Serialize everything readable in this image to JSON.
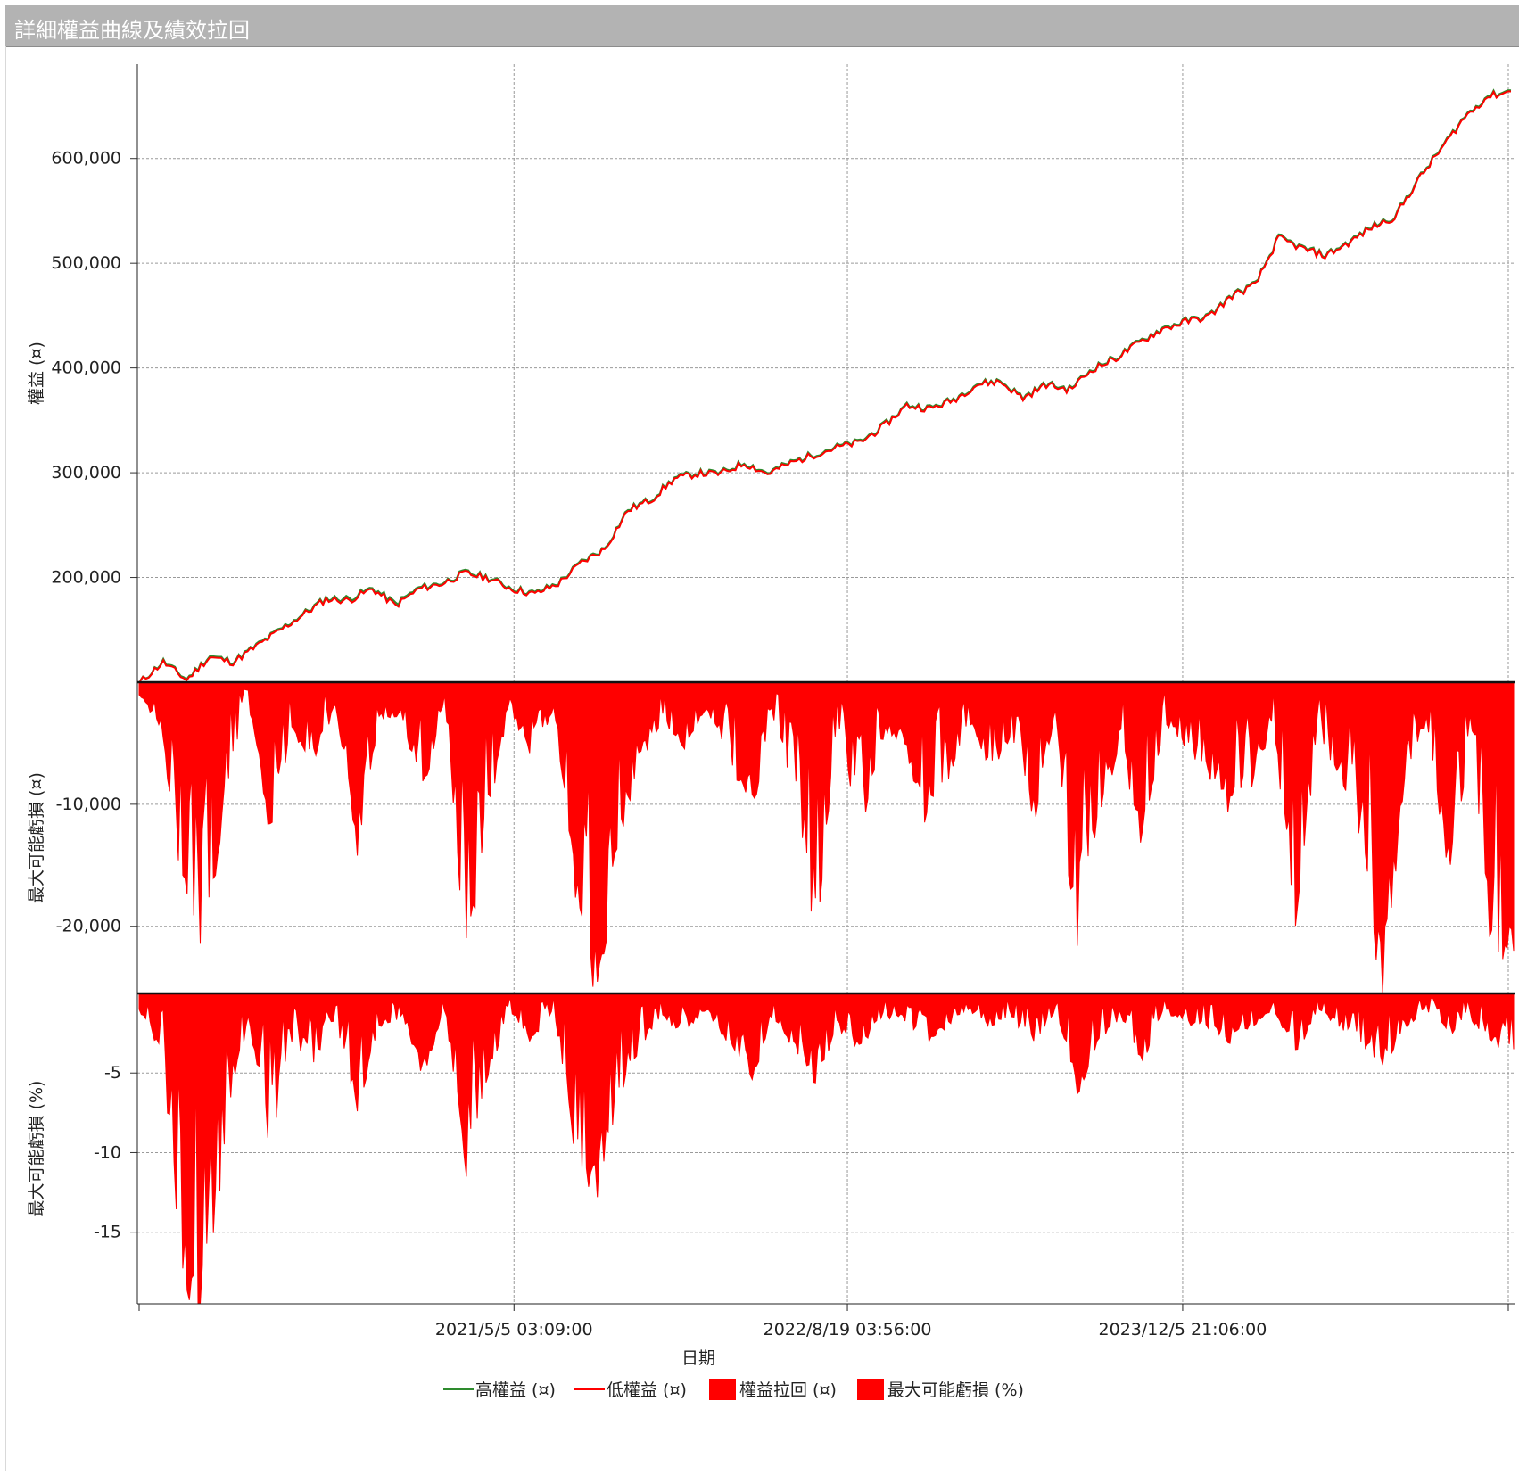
{
  "window": {
    "title": "詳細權益曲線及績效拉回"
  },
  "chart_data": {
    "type": "line",
    "x_label": "日期",
    "x_ticks": [
      "2021/5/5 03:09:00",
      "2022/8/19 03:56:00",
      "2023/12/5 21:06:00"
    ],
    "x_range": [
      "2019-11-20",
      "2025-03-20"
    ],
    "panels": [
      {
        "name": "equity",
        "ylabel": "權益 (¤)",
        "ylim": [
          100000,
          690000
        ],
        "ticks": [
          200000,
          300000,
          400000,
          500000,
          600000
        ],
        "tick_labels": [
          "200,000",
          "300,000",
          "400,000",
          "500,000",
          "600,000"
        ],
        "series": [
          {
            "name": "高權益 (¤)",
            "color": "#2e8b2e",
            "values": [
              100000,
              120000,
              103000,
              125000,
              120000,
              135000,
              150000,
              165000,
              180000,
              180000,
              190000,
              175000,
              190000,
              195000,
              205000,
              200000,
              190000,
              185000,
              195000,
              215000,
              228000,
              265000,
              275000,
              295000,
              300000,
              300000,
              310000,
              300000,
              310000,
              318000,
              325000,
              330000,
              345000,
              365000,
              362000,
              370000,
              385000,
              388000,
              372000,
              385000,
              380000,
              400000,
              410000,
              425000,
              438000,
              445000,
              450000,
              470000,
              480000,
              525000,
              515000,
              508000,
              520000,
              535000,
              545000,
              580000,
              610000,
              640000,
              660000,
              665000
            ]
          },
          {
            "name": "低權益 (¤)",
            "color": "#ff0000",
            "values": [
              100000,
              119000,
              102000,
              124000,
              119000,
              134000,
              149000,
              164000,
              179000,
              178000,
              189000,
              173000,
              189000,
              194000,
              204000,
              199000,
              189000,
              184000,
              194000,
              214000,
              227000,
              264000,
              274000,
              294000,
              299000,
              299000,
              309000,
              299000,
              309000,
              317000,
              324000,
              329000,
              344000,
              364000,
              361000,
              369000,
              384000,
              387000,
              371000,
              384000,
              379000,
              399000,
              409000,
              424000,
              437000,
              444000,
              449000,
              469000,
              479000,
              524000,
              514000,
              507000,
              519000,
              534000,
              544000,
              579000,
              609000,
              639000,
              659000,
              664000
            ]
          }
        ]
      },
      {
        "name": "drawdown_amount",
        "ylabel": "最大可能虧損 (¤)",
        "ylim": [
          -25500,
          0
        ],
        "ticks": [
          -10000,
          -20000
        ],
        "tick_labels": [
          "-10,000",
          "-20,000"
        ],
        "series": [
          {
            "name": "權益拉回 (¤)",
            "color": "#ff0000",
            "values": [
              -1000,
              -3500,
              -16000,
              -22000,
              -8000,
              -1500,
              -12000,
              -4000,
              -6000,
              -2000,
              -13000,
              -3000,
              -2500,
              -9000,
              -1200,
              -22000,
              -10000,
              -2000,
              -6000,
              -2000,
              -17000,
              -25000,
              -12000,
              -6000,
              -3000,
              -5000,
              -2000,
              -6000,
              -11000,
              -3000,
              -8000,
              -20000,
              -3500,
              -12000,
              -5000,
              -4000,
              -11000,
              -8000,
              -3000,
              -7000,
              -4000,
              -11000,
              -2500,
              -23000,
              -10000,
              -5000,
              -13000,
              -3000,
              -5000,
              -7000,
              -10000,
              -8000,
              -3000,
              -20000,
              -4000,
              -7000,
              -12000,
              -25000,
              -8000,
              -3000,
              -15000,
              -6000,
              -21000,
              -22000
            ]
          }
        ]
      },
      {
        "name": "drawdown_percent",
        "ylabel": "最大可能虧損 (%)",
        "ylim": [
          -19.5,
          0
        ],
        "ticks": [
          -5,
          -10,
          -15
        ],
        "tick_labels": [
          "-5",
          "-10",
          "-15"
        ],
        "series": [
          {
            "name": "最大可能虧損 (%)",
            "color": "#ff0000",
            "values": [
              -1,
              -3.5,
              -17,
              -19,
              -8,
              -1.5,
              -9,
              -3,
              -4,
              -1.5,
              -7,
              -2,
              -1.5,
              -5,
              -1,
              -11,
              -5,
              -1,
              -3,
              -1,
              -10,
              -12,
              -6,
              -3,
              -1.5,
              -2.5,
              -1,
              -3,
              -6,
              -1.5,
              -3.5,
              -5.5,
              -2,
              -3.5,
              -1.5,
              -1.5,
              -3,
              -2,
              -1,
              -2,
              -1.5,
              -3,
              -1,
              -6,
              -3,
              -1.5,
              -4,
              -1,
              -2,
              -2,
              -3,
              -2,
              -1,
              -4,
              -1,
              -2,
              -3,
              -4.5,
              -2,
              -1,
              -2.5,
              -1.5,
              -3,
              -3.5
            ]
          }
        ]
      }
    ],
    "legend": {
      "position": "bottom",
      "items": [
        {
          "label": "高權益 (¤)",
          "type": "line",
          "color": "#2e8b2e"
        },
        {
          "label": "低權益 (¤)",
          "type": "line",
          "color": "#ff0000"
        },
        {
          "label": "權益拉回 (¤)",
          "type": "box",
          "color": "#ff0000"
        },
        {
          "label": "最大可能虧損 (%)",
          "type": "box",
          "color": "#ff0000"
        }
      ]
    }
  }
}
